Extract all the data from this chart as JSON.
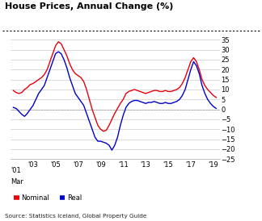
{
  "title": "House Prices, Annual Change (%)",
  "source": "Source: Statistics Iceland, Global Property Guide",
  "ylim": [
    -25,
    35
  ],
  "nominal_color": "#e8000d",
  "real_color": "#0000cc",
  "background_color": "#ffffff",
  "years": [
    2001.25,
    2001.5,
    2001.75,
    2002.0,
    2002.25,
    2002.5,
    2002.75,
    2003.0,
    2003.25,
    2003.5,
    2003.75,
    2004.0,
    2004.25,
    2004.5,
    2004.75,
    2005.0,
    2005.25,
    2005.5,
    2005.75,
    2006.0,
    2006.25,
    2006.5,
    2006.75,
    2007.0,
    2007.25,
    2007.5,
    2007.75,
    2008.0,
    2008.25,
    2008.5,
    2008.75,
    2009.0,
    2009.25,
    2009.5,
    2009.75,
    2010.0,
    2010.25,
    2010.5,
    2010.75,
    2011.0,
    2011.25,
    2011.5,
    2011.75,
    2012.0,
    2012.25,
    2012.5,
    2012.75,
    2013.0,
    2013.25,
    2013.5,
    2013.75,
    2014.0,
    2014.25,
    2014.5,
    2014.75,
    2015.0,
    2015.25,
    2015.5,
    2015.75,
    2016.0,
    2016.25,
    2016.5,
    2016.75,
    2017.0,
    2017.25,
    2017.5,
    2017.75,
    2018.0,
    2018.25,
    2018.5,
    2018.75,
    2019.0,
    2019.25
  ],
  "nominal": [
    9.5,
    8.5,
    8.0,
    8.5,
    10.0,
    11.0,
    12.5,
    13.0,
    14.0,
    15.0,
    16.0,
    17.5,
    20.0,
    24.0,
    28.0,
    32.0,
    34.0,
    33.0,
    30.0,
    27.0,
    23.0,
    20.0,
    18.0,
    17.0,
    16.0,
    14.0,
    10.0,
    5.0,
    0.0,
    -4.0,
    -8.0,
    -10.0,
    -11.0,
    -10.5,
    -8.0,
    -5.0,
    -2.0,
    0.5,
    3.0,
    5.0,
    8.0,
    9.0,
    9.5,
    10.0,
    9.5,
    9.0,
    8.5,
    8.0,
    8.5,
    9.0,
    9.5,
    9.5,
    9.0,
    9.0,
    9.5,
    9.0,
    9.0,
    9.5,
    10.0,
    11.0,
    13.0,
    16.0,
    20.0,
    24.0,
    26.0,
    24.0,
    20.0,
    15.0,
    12.0,
    10.0,
    8.5,
    7.0,
    6.0
  ],
  "real": [
    1.0,
    0.5,
    -1.0,
    -2.5,
    -3.5,
    -2.0,
    0.0,
    2.0,
    5.0,
    8.0,
    10.0,
    12.0,
    16.0,
    20.0,
    24.0,
    28.0,
    29.0,
    28.0,
    25.0,
    21.0,
    16.0,
    12.0,
    8.0,
    6.0,
    4.0,
    2.0,
    -2.0,
    -6.0,
    -10.0,
    -14.0,
    -16.0,
    -16.0,
    -16.5,
    -17.0,
    -18.0,
    -20.5,
    -18.0,
    -14.0,
    -8.0,
    -3.0,
    1.0,
    3.0,
    4.0,
    4.5,
    4.5,
    4.0,
    3.5,
    3.0,
    3.5,
    3.5,
    4.0,
    3.5,
    3.0,
    3.0,
    3.5,
    3.0,
    3.0,
    3.5,
    4.0,
    5.0,
    7.0,
    10.0,
    15.0,
    20.0,
    24.0,
    22.0,
    18.0,
    12.0,
    8.0,
    5.0,
    3.0,
    1.5,
    0.5
  ]
}
